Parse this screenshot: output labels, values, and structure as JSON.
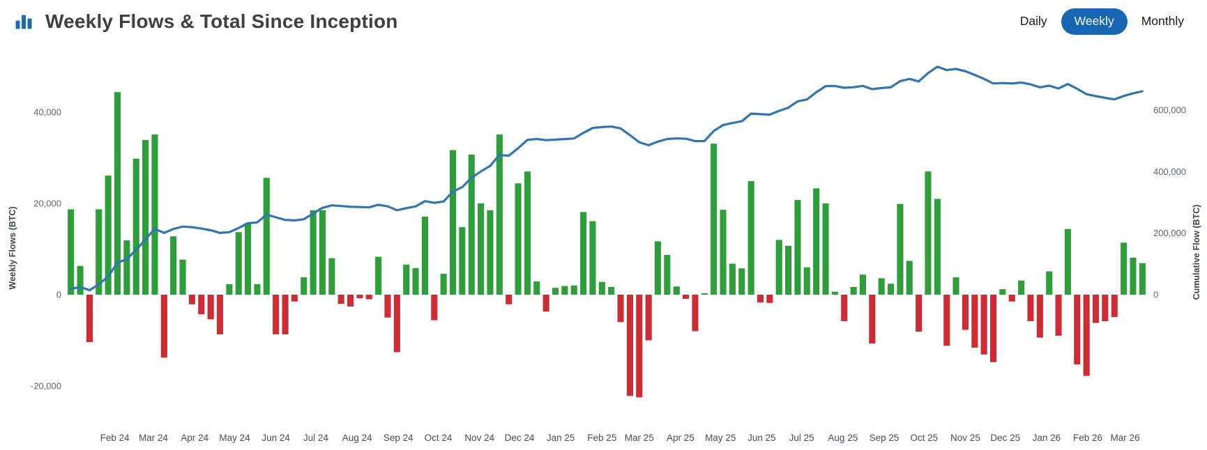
{
  "header": {
    "title": "Weekly Flows & Total Since Inception",
    "icon": "bar-chart-icon",
    "toggle": {
      "options": [
        "Daily",
        "Weekly",
        "Monthly"
      ],
      "selected": "Weekly"
    }
  },
  "chart_data": {
    "type": "bar",
    "subtype": "weekly-bars-with-cumulative-line",
    "grid": false,
    "legend": false,
    "background": "#ffffff",
    "bar_series": {
      "name": "Weekly Flows (BTC)",
      "start_week": "2024-01-10",
      "interval_days": 7,
      "positive_color": "#2e9e3a",
      "negative_color": "#cd2c34",
      "values": [
        18700,
        6300,
        -10400,
        18700,
        26100,
        44400,
        11900,
        29800,
        33900,
        35100,
        -13800,
        12800,
        7700,
        -2100,
        -4300,
        -5400,
        -8700,
        2300,
        13700,
        15700,
        2300,
        25600,
        -8700,
        -8700,
        -1500,
        3800,
        18500,
        18500,
        8000,
        -2000,
        -2600,
        -800,
        -1000,
        8300,
        -5000,
        -12600,
        6600,
        5800,
        17100,
        -5600,
        4600,
        31700,
        14800,
        30700,
        20000,
        18500,
        35100,
        -2100,
        24400,
        27000,
        2900,
        -3700,
        1500,
        1900,
        2000,
        18100,
        16100,
        2800,
        1700,
        -6000,
        -22200,
        -22500,
        -10000,
        11700,
        8700,
        1800,
        -900,
        -8000,
        300,
        33100,
        18600,
        6800,
        5750,
        24900,
        -1700,
        -1800,
        12000,
        10700,
        20750,
        6000,
        23300,
        20000,
        650,
        -5800,
        1700,
        4400,
        -10700,
        3600,
        2400,
        19900,
        7400,
        -8100,
        27000,
        21000,
        -11200,
        3800,
        -7700,
        -11600,
        -13100,
        -14800,
        1200,
        -1500,
        3100,
        -5800,
        -9400,
        5100,
        -9000,
        14400,
        -15300,
        -17800,
        -6200,
        -5800,
        -4900,
        11400,
        8100,
        6900
      ]
    },
    "line_series": {
      "name": "Cumulative Flow (BTC)",
      "derived": "cumulative_sum_of_bar_values",
      "color": "#3175b0",
      "end_value": 661050
    },
    "y_left": {
      "label": "Weekly Flows (BTC)",
      "ticks": [
        40000,
        20000,
        0,
        -20000
      ],
      "tick_labels": [
        "40,000",
        "20,000",
        "0",
        "-20,000"
      ]
    },
    "y_right": {
      "label": "Cumulative Flow (BTC)",
      "ticks": [
        600000,
        400000,
        200000,
        0
      ],
      "tick_labels": [
        "600,000",
        "400,000",
        "200,000",
        "0"
      ]
    },
    "x_axis": {
      "labels": [
        {
          "label": "Feb 24",
          "date": "2024-02-12"
        },
        {
          "label": "Mar 24",
          "date": "2024-03-12"
        },
        {
          "label": "Apr 24",
          "date": "2024-04-12"
        },
        {
          "label": "May 24",
          "date": "2024-05-12"
        },
        {
          "label": "Jun 24",
          "date": "2024-06-12"
        },
        {
          "label": "Jul 24",
          "date": "2024-07-12"
        },
        {
          "label": "Aug 24",
          "date": "2024-08-12"
        },
        {
          "label": "Sep 24",
          "date": "2024-09-12"
        },
        {
          "label": "Oct 24",
          "date": "2024-10-12"
        },
        {
          "label": "Nov 24",
          "date": "2024-11-12"
        },
        {
          "label": "Dec 24",
          "date": "2024-12-12"
        },
        {
          "label": "Jan 25",
          "date": "2025-01-12"
        },
        {
          "label": "Feb 25",
          "date": "2025-02-12"
        },
        {
          "label": "Mar 25",
          "date": "2025-03-12"
        },
        {
          "label": "Apr 25",
          "date": "2025-04-12"
        },
        {
          "label": "May 25",
          "date": "2025-05-12"
        },
        {
          "label": "Jun 25",
          "date": "2025-06-12"
        },
        {
          "label": "Jul 25",
          "date": "2025-07-12"
        },
        {
          "label": "Aug 25",
          "date": "2025-08-12"
        },
        {
          "label": "Sep 25",
          "date": "2025-09-12"
        },
        {
          "label": "Oct 25",
          "date": "2025-10-12"
        },
        {
          "label": "Nov 25",
          "date": "2025-11-12"
        },
        {
          "label": "Dec 25",
          "date": "2025-12-12"
        },
        {
          "label": "Jan 26",
          "date": "2026-01-12"
        },
        {
          "label": "Feb 26",
          "date": "2026-02-12"
        },
        {
          "label": "Mar 26",
          "date": "2026-03-12"
        }
      ]
    },
    "text_colors": {
      "axis_title": "#3d4852",
      "tick_label": "#5d6875",
      "month_label": "#47515c"
    }
  }
}
